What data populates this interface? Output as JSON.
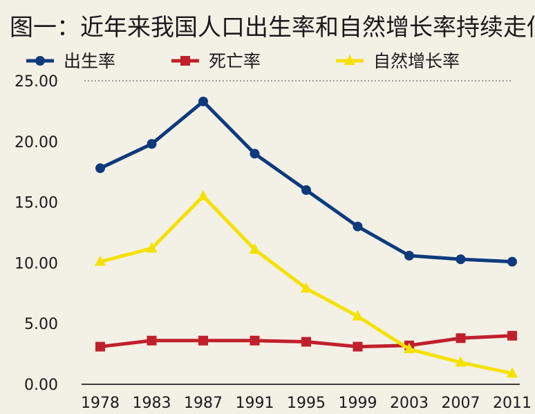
{
  "chart_data": {
    "type": "line",
    "title": "图一：近年来我国人口出生率和自然增长率持续走低",
    "xlabel": "",
    "ylabel": "",
    "categories": [
      "1978",
      "1983",
      "1987",
      "1991",
      "1995",
      "1999",
      "2003",
      "2007",
      "2011"
    ],
    "ylim": [
      0,
      25
    ],
    "yticks": [
      "0.00",
      "5.00",
      "10.00",
      "15.00",
      "20.00",
      "25.00"
    ],
    "grid": false,
    "legend_position": "top",
    "series": [
      {
        "name": "出生率",
        "color": "#0d3a7c",
        "marker": "circle",
        "values": [
          17.8,
          19.8,
          23.3,
          19.0,
          16.0,
          13.0,
          10.6,
          10.3,
          10.1
        ]
      },
      {
        "name": "死亡率",
        "color": "#c0202c",
        "marker": "square",
        "values": [
          3.1,
          3.6,
          3.6,
          3.6,
          3.5,
          3.1,
          3.2,
          3.8,
          4.0
        ]
      },
      {
        "name": "自然增长率",
        "color": "#f5e100",
        "marker": "triangle",
        "values": [
          10.1,
          11.2,
          15.5,
          11.1,
          7.9,
          5.6,
          2.9,
          1.8,
          0.9
        ]
      }
    ]
  }
}
